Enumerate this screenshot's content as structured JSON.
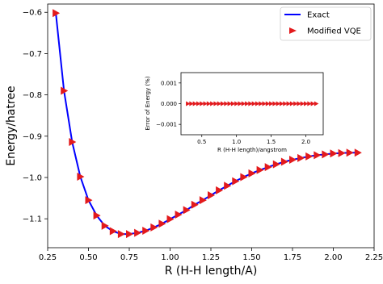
{
  "chart_data": [
    {
      "type": "line",
      "xlabel": "R (H-H length/A)",
      "ylabel": "Energy/hatree",
      "xlim": [
        0.25,
        2.25
      ],
      "ylim": [
        -1.17,
        -0.58
      ],
      "xticks": [
        "0.25",
        "0.50",
        "0.75",
        "1.00",
        "1.25",
        "1.50",
        "1.75",
        "2.00",
        "2.25"
      ],
      "yticks": [
        "−0.6",
        "−0.7",
        "−0.8",
        "−0.9",
        "−1.0",
        "−1.1"
      ],
      "grid": false,
      "legend": "top-right",
      "colors": {
        "exact": "#0000ff",
        "vqe": "#e31a1c"
      },
      "series": [
        {
          "name": "Exact",
          "style": "line",
          "x": [
            0.3,
            0.35,
            0.4,
            0.45,
            0.5,
            0.55,
            0.6,
            0.65,
            0.7,
            0.75,
            0.8,
            0.85,
            0.9,
            0.95,
            1.0,
            1.05,
            1.1,
            1.15,
            1.2,
            1.25,
            1.3,
            1.35,
            1.4,
            1.45,
            1.5,
            1.55,
            1.6,
            1.65,
            1.7,
            1.75,
            1.8,
            1.85,
            1.9,
            1.95,
            2.0,
            2.05,
            2.1,
            2.15
          ],
          "y": [
            -0.602,
            -0.79,
            -0.914,
            -0.998,
            -1.055,
            -1.092,
            -1.117,
            -1.13,
            -1.137,
            -1.137,
            -1.134,
            -1.129,
            -1.121,
            -1.112,
            -1.101,
            -1.09,
            -1.079,
            -1.066,
            -1.055,
            -1.043,
            -1.031,
            -1.02,
            -1.009,
            -0.999,
            -0.99,
            -0.982,
            -0.975,
            -0.968,
            -0.962,
            -0.957,
            -0.953,
            -0.949,
            -0.946,
            -0.944,
            -0.942,
            -0.941,
            -0.94,
            -0.94
          ]
        },
        {
          "name": "Modified VQE",
          "style": "marker",
          "x": [
            0.3,
            0.35,
            0.4,
            0.45,
            0.5,
            0.55,
            0.6,
            0.65,
            0.7,
            0.75,
            0.8,
            0.85,
            0.9,
            0.95,
            1.0,
            1.05,
            1.1,
            1.15,
            1.2,
            1.25,
            1.3,
            1.35,
            1.4,
            1.45,
            1.5,
            1.55,
            1.6,
            1.65,
            1.7,
            1.75,
            1.8,
            1.85,
            1.9,
            1.95,
            2.0,
            2.05,
            2.1,
            2.15
          ],
          "y": [
            -0.602,
            -0.79,
            -0.914,
            -0.998,
            -1.055,
            -1.092,
            -1.117,
            -1.13,
            -1.137,
            -1.137,
            -1.134,
            -1.129,
            -1.121,
            -1.112,
            -1.101,
            -1.09,
            -1.079,
            -1.066,
            -1.055,
            -1.043,
            -1.031,
            -1.02,
            -1.009,
            -0.999,
            -0.99,
            -0.982,
            -0.975,
            -0.968,
            -0.962,
            -0.957,
            -0.953,
            -0.949,
            -0.946,
            -0.944,
            -0.942,
            -0.941,
            -0.94,
            -0.94
          ]
        }
      ]
    },
    {
      "type": "line",
      "xlabel": "R (H-H length)/angstrom",
      "ylabel": "Error of Energy (%)",
      "xlim": [
        0.2,
        2.25
      ],
      "ylim": [
        -0.0015,
        0.0015
      ],
      "xticks": [
        "0.5",
        "1.0",
        "1.5",
        "2.0"
      ],
      "yticks": [
        "0.001",
        "0.000",
        "−0.001"
      ],
      "series": [
        {
          "style": "line+marker",
          "x": [
            0.3,
            0.35,
            0.4,
            0.45,
            0.5,
            0.55,
            0.6,
            0.65,
            0.7,
            0.75,
            0.8,
            0.85,
            0.9,
            0.95,
            1.0,
            1.05,
            1.1,
            1.15,
            1.2,
            1.25,
            1.3,
            1.35,
            1.4,
            1.45,
            1.5,
            1.55,
            1.6,
            1.65,
            1.7,
            1.75,
            1.8,
            1.85,
            1.9,
            1.95,
            2.0,
            2.05,
            2.1,
            2.15
          ],
          "y": [
            0,
            0,
            0,
            0,
            0,
            0,
            0,
            0,
            0,
            0,
            0,
            0,
            0,
            0,
            0,
            0,
            0,
            0,
            0,
            0,
            0,
            0,
            0,
            0,
            0,
            0,
            0,
            0,
            0,
            0,
            0,
            0,
            0,
            0,
            0,
            0,
            0,
            0
          ]
        }
      ]
    }
  ]
}
